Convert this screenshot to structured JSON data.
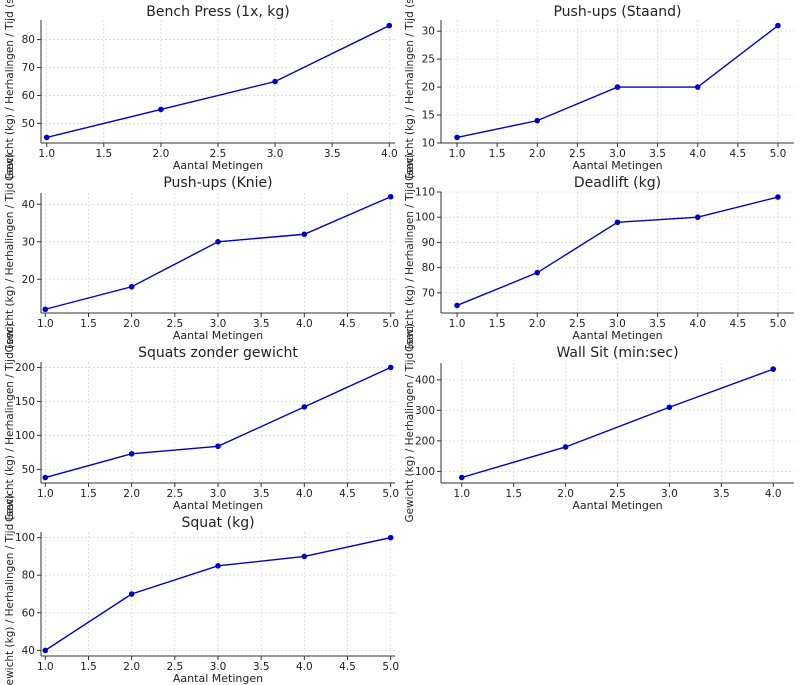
{
  "chart_data": [
    {
      "type": "line",
      "title": "Bench Press (1x, kg)",
      "xlabel": "Aantal Metingen",
      "ylabel": "Gewicht (kg) / Herhalingen / Tijd (sec)",
      "x": [
        1,
        2,
        3,
        4
      ],
      "series": [
        {
          "values": [
            45,
            55,
            65,
            85
          ]
        }
      ],
      "xlim": [
        0.95,
        4.05
      ],
      "ylim": [
        43,
        87
      ],
      "xticks": [
        1.0,
        1.5,
        2.0,
        2.5,
        3.0,
        3.5,
        4.0
      ],
      "yticks": [
        50,
        60,
        70,
        80
      ],
      "color": "#0000cc",
      "grid": true
    },
    {
      "type": "line",
      "title": "Push-ups (Staand)",
      "xlabel": "Aantal Metingen",
      "ylabel": "Gewicht (kg) / Herhalingen / Tijd (sec)",
      "x": [
        1,
        2,
        3,
        4,
        5
      ],
      "series": [
        {
          "values": [
            11,
            14,
            20,
            20,
            31
          ]
        }
      ],
      "xlim": [
        0.8,
        5.2
      ],
      "ylim": [
        10,
        32
      ],
      "xticks": [
        1.0,
        1.5,
        2.0,
        2.5,
        3.0,
        3.5,
        4.0,
        4.5,
        5.0
      ],
      "yticks": [
        10,
        15,
        20,
        25,
        30
      ],
      "color": "#0000cc",
      "grid": true
    },
    {
      "type": "line",
      "title": "Push-ups (Knie)",
      "xlabel": "Aantal Metingen",
      "ylabel": "Gewicht (kg) / Herhalingen / Tijd (sec)",
      "x": [
        1,
        2,
        3,
        4,
        5
      ],
      "series": [
        {
          "values": [
            12,
            18,
            30,
            32,
            42
          ]
        }
      ],
      "xlim": [
        0.95,
        5.05
      ],
      "ylim": [
        11,
        43
      ],
      "xticks": [
        1.0,
        1.5,
        2.0,
        2.5,
        3.0,
        3.5,
        4.0,
        4.5,
        5.0
      ],
      "yticks": [
        20,
        30,
        40
      ],
      "color": "#0000cc",
      "grid": true
    },
    {
      "type": "line",
      "title": "Deadlift (kg)",
      "xlabel": "Aantal Metingen",
      "ylabel": "Gewicht (kg) / Herhalingen / Tijd (sec)",
      "x": [
        1,
        2,
        3,
        4,
        5
      ],
      "series": [
        {
          "values": [
            65,
            78,
            98,
            100,
            108
          ]
        }
      ],
      "xlim": [
        0.8,
        5.2
      ],
      "ylim": [
        62,
        110
      ],
      "xticks": [
        1.0,
        1.5,
        2.0,
        2.5,
        3.0,
        3.5,
        4.0,
        4.5,
        5.0
      ],
      "yticks": [
        70,
        80,
        90,
        100,
        110
      ],
      "color": "#0000cc",
      "grid": true
    },
    {
      "type": "line",
      "title": "Squats zonder gewicht",
      "xlabel": "Aantal Metingen",
      "ylabel": "Gewicht (kg) / Herhalingen / Tijd (sec)",
      "x": [
        1,
        2,
        3,
        4,
        5
      ],
      "series": [
        {
          "values": [
            38,
            73,
            84,
            142,
            200
          ]
        }
      ],
      "xlim": [
        0.95,
        5.05
      ],
      "ylim": [
        30,
        208
      ],
      "xticks": [
        1.0,
        1.5,
        2.0,
        2.5,
        3.0,
        3.5,
        4.0,
        4.5,
        5.0
      ],
      "yticks": [
        50,
        100,
        150,
        200
      ],
      "color": "#0000cc",
      "grid": true
    },
    {
      "type": "line",
      "title": "Wall Sit (min:sec)",
      "xlabel": "Aantal Metingen",
      "ylabel": "Gewicht (kg) / Herhalingen / Tijd (sec)",
      "x": [
        1,
        2,
        3,
        4
      ],
      "series": [
        {
          "values": [
            80,
            180,
            310,
            435
          ]
        }
      ],
      "xlim": [
        0.8,
        4.2
      ],
      "ylim": [
        62,
        455
      ],
      "xticks": [
        1.0,
        1.5,
        2.0,
        2.5,
        3.0,
        3.5,
        4.0
      ],
      "yticks": [
        100,
        200,
        300,
        400
      ],
      "color": "#0000cc",
      "grid": true
    },
    {
      "type": "line",
      "title": "Squat (kg)",
      "xlabel": "Aantal Metingen",
      "ylabel": "Gewicht (kg) / Herhalingen / Tijd (sec)",
      "x": [
        1,
        2,
        3,
        4,
        5
      ],
      "series": [
        {
          "values": [
            40,
            70,
            85,
            90,
            100
          ]
        }
      ],
      "xlim": [
        0.95,
        5.05
      ],
      "ylim": [
        37,
        103
      ],
      "xticks": [
        1.0,
        1.5,
        2.0,
        2.5,
        3.0,
        3.5,
        4.0,
        4.5,
        5.0
      ],
      "yticks": [
        40,
        60,
        80,
        100
      ],
      "color": "#0000cc",
      "grid": true
    }
  ]
}
